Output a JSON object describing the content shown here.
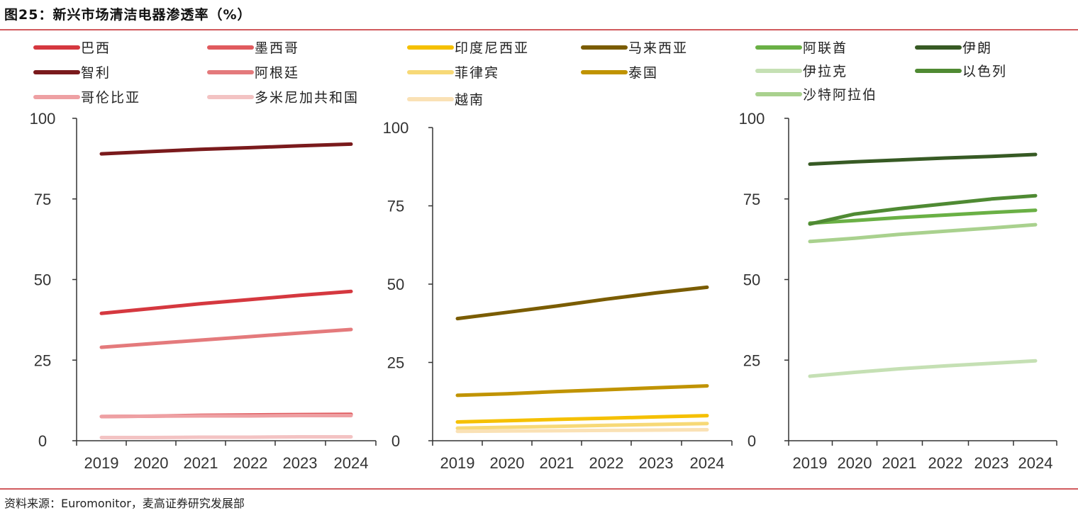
{
  "title": "图25：新兴市场清洁电器渗透率（%）",
  "source": "资料来源：Euromonitor，麦高证券研究发展部",
  "accent_color": "#d15b5e",
  "chart_data": [
    {
      "type": "line",
      "title": "",
      "x": [
        "2019",
        "2020",
        "2021",
        "2022",
        "2023",
        "2024"
      ],
      "ylim": [
        0,
        100
      ],
      "yticks": [
        0,
        25,
        50,
        75,
        100
      ],
      "grid": false,
      "legend_position": "top",
      "series": [
        {
          "name": "巴西",
          "color": "#d5383f",
          "values": [
            39.5,
            41,
            42.5,
            43.8,
            45.1,
            46.3
          ]
        },
        {
          "name": "墨西哥",
          "color": "#e05a5e",
          "values": [
            7.5,
            7.6,
            7.9,
            8.0,
            8.1,
            8.2
          ]
        },
        {
          "name": "智利",
          "color": "#7a1a1c",
          "values": [
            89,
            89.7,
            90.4,
            90.9,
            91.5,
            92
          ]
        },
        {
          "name": "阿根廷",
          "color": "#e47a7c",
          "values": [
            29,
            30.1,
            31.2,
            32.3,
            33.4,
            34.5
          ]
        },
        {
          "name": "哥伦比亚",
          "color": "#eea0a3",
          "values": [
            7.5,
            7.6,
            7.7,
            7.7,
            7.8,
            7.8
          ]
        },
        {
          "name": "多米尼加共和国",
          "color": "#f3c3c3",
          "values": [
            1.0,
            1.0,
            1.1,
            1.1,
            1.2,
            1.2
          ]
        }
      ]
    },
    {
      "type": "line",
      "title": "",
      "x": [
        "2019",
        "2020",
        "2021",
        "2022",
        "2023",
        "2024"
      ],
      "ylim": [
        0,
        100
      ],
      "yticks": [
        0,
        25,
        50,
        75,
        100
      ],
      "grid": false,
      "legend_position": "top",
      "series": [
        {
          "name": "印度尼西亚",
          "color": "#f5c000",
          "values": [
            6.0,
            6.4,
            6.8,
            7.2,
            7.6,
            8.0
          ]
        },
        {
          "name": "马来西亚",
          "color": "#7a5c00",
          "values": [
            39,
            41,
            43,
            45.2,
            47.2,
            49
          ]
        },
        {
          "name": "菲律宾",
          "color": "#f7d977",
          "values": [
            4.0,
            4.3,
            4.6,
            4.9,
            5.2,
            5.5
          ]
        },
        {
          "name": "泰国",
          "color": "#c09300",
          "values": [
            14.5,
            15,
            15.7,
            16.3,
            16.9,
            17.5
          ]
        },
        {
          "name": "越南",
          "color": "#fae1b5",
          "values": [
            3.0,
            3.1,
            3.2,
            3.3,
            3.4,
            3.5
          ]
        }
      ]
    },
    {
      "type": "line",
      "title": "",
      "x": [
        "2019",
        "2020",
        "2021",
        "2022",
        "2023",
        "2024"
      ],
      "ylim": [
        0,
        100
      ],
      "yticks": [
        0,
        25,
        50,
        75,
        100
      ],
      "grid": false,
      "legend_position": "top",
      "series": [
        {
          "name": "阿联酋",
          "color": "#6ab045",
          "values": [
            67.5,
            68.3,
            69.2,
            70,
            70.8,
            71.5
          ]
        },
        {
          "name": "伊朗",
          "color": "#375a24",
          "values": [
            85.8,
            86.5,
            87.1,
            87.7,
            88.2,
            88.8
          ]
        },
        {
          "name": "伊拉克",
          "color": "#c5e0b4",
          "values": [
            20,
            21.2,
            22.3,
            23.2,
            24,
            24.8
          ]
        },
        {
          "name": "以色列",
          "color": "#4f8a33",
          "values": [
            67.2,
            70.3,
            72,
            73.5,
            75,
            76
          ]
        },
        {
          "name": "沙特阿拉伯",
          "color": "#a9d18e",
          "values": [
            61.8,
            62.8,
            64,
            65,
            66,
            67
          ]
        }
      ]
    }
  ]
}
